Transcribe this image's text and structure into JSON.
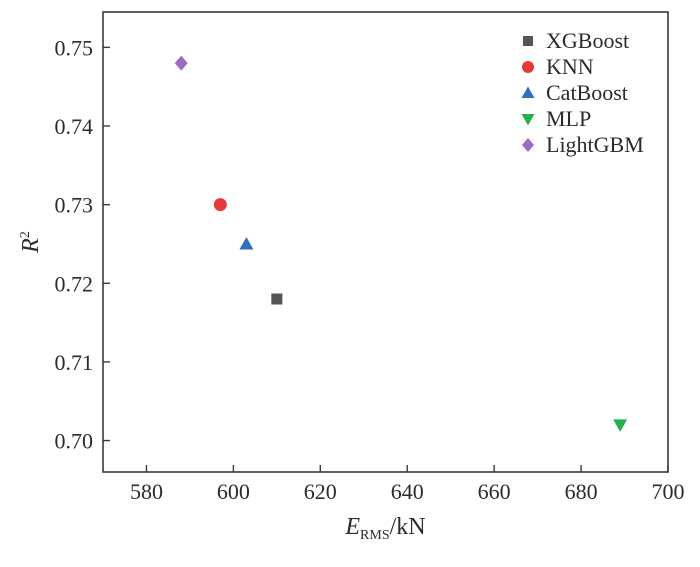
{
  "chart_data": {
    "type": "scatter",
    "title": "",
    "xlabel": {
      "main": "E",
      "sub": "RMS",
      "rest": "/kN"
    },
    "ylabel": {
      "main": "R",
      "sup": "2"
    },
    "xlim": [
      570,
      700
    ],
    "ylim": [
      0.696,
      0.7545
    ],
    "xticks": [
      580,
      600,
      620,
      640,
      660,
      680,
      700
    ],
    "yticks": [
      0.7,
      0.71,
      0.72,
      0.73,
      0.74,
      0.75
    ],
    "ytick_labels": [
      "0.70",
      "0.71",
      "0.72",
      "0.73",
      "0.74",
      "0.75"
    ],
    "grid": false,
    "legend_position": "top-right",
    "series": [
      {
        "name": "XGBoost",
        "marker": "square",
        "color": "#555555",
        "x": 610,
        "y": 0.718
      },
      {
        "name": "KNN",
        "marker": "circle",
        "color": "#e8393a",
        "x": 597,
        "y": 0.73
      },
      {
        "name": "CatBoost",
        "marker": "triangle-up",
        "color": "#2f6fc0",
        "x": 603,
        "y": 0.725
      },
      {
        "name": "MLP",
        "marker": "triangle-down",
        "color": "#23b24b",
        "x": 689,
        "y": 0.702
      },
      {
        "name": "LightGBM",
        "marker": "diamond",
        "color": "#9b6cc0",
        "x": 588,
        "y": 0.748
      }
    ]
  }
}
